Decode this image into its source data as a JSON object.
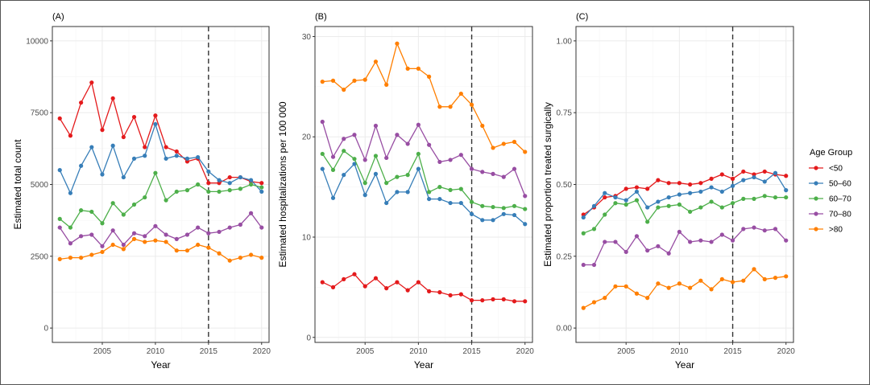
{
  "colors": {
    "<50": "#e41a1c",
    "50–60": "#377eb8",
    "60–70": "#4daf4a",
    "70–80": "#984ea3",
    ">80": "#ff7f00"
  },
  "legend": {
    "title": "Age Group",
    "items": [
      "<50",
      "50–60",
      "60–70",
      "70–80",
      ">80"
    ]
  },
  "chart_data": [
    {
      "type": "line",
      "panel_label": "(A)",
      "xlabel": "Year",
      "ylabel": "Estimated total count",
      "xlim": [
        2000.3,
        2020.7
      ],
      "ylim": [
        -500,
        10500
      ],
      "xticks": [
        2005,
        2010,
        2015,
        2020
      ],
      "yticks": [
        0,
        2500,
        5000,
        7500,
        10000
      ],
      "ytick_labels": [
        "0",
        "2500",
        "5000",
        "7500",
        "10000"
      ],
      "vline_x": 2015,
      "x": [
        2001,
        2002,
        2003,
        2004,
        2005,
        2006,
        2007,
        2008,
        2009,
        2010,
        2011,
        2012,
        2013,
        2014,
        2015,
        2016,
        2017,
        2018,
        2019,
        2020
      ],
      "series": [
        {
          "name": "<50",
          "values": [
            7300,
            6700,
            7850,
            8550,
            6900,
            8000,
            6650,
            7350,
            6300,
            7400,
            6300,
            6150,
            5800,
            5900,
            5050,
            5050,
            5250,
            5250,
            5100,
            5050
          ]
        },
        {
          "name": "50–60",
          "values": [
            5500,
            4700,
            5650,
            6300,
            5350,
            6350,
            5250,
            5900,
            6000,
            7100,
            5900,
            6000,
            5900,
            5950,
            5450,
            5150,
            5050,
            5250,
            5150,
            4750
          ]
        },
        {
          "name": "60–70",
          "values": [
            3800,
            3500,
            4100,
            4050,
            3650,
            4350,
            3950,
            4300,
            4550,
            5400,
            4450,
            4750,
            4800,
            5000,
            4750,
            4750,
            4800,
            4850,
            5000,
            4900
          ]
        },
        {
          "name": "70–80",
          "values": [
            3500,
            2950,
            3200,
            3250,
            2850,
            3400,
            2900,
            3300,
            3200,
            3550,
            3250,
            3100,
            3250,
            3500,
            3300,
            3350,
            3500,
            3600,
            4000,
            3500
          ]
        },
        {
          "name": ">80",
          "values": [
            2400,
            2450,
            2450,
            2550,
            2650,
            2900,
            2750,
            3100,
            3000,
            3050,
            3000,
            2700,
            2700,
            2900,
            2800,
            2600,
            2350,
            2450,
            2550,
            2450
          ]
        }
      ]
    },
    {
      "type": "line",
      "panel_label": "(B)",
      "xlabel": "Year",
      "ylabel": "Estimated hospitalizations per 100 000",
      "xlim": [
        2000.3,
        2020.7
      ],
      "ylim": [
        -0.5,
        31
      ],
      "xticks": [
        2005,
        2010,
        2015,
        2020
      ],
      "yticks": [
        0,
        10,
        20,
        30
      ],
      "ytick_labels": [
        "0",
        "10",
        "20",
        "30"
      ],
      "vline_x": 2015,
      "x": [
        2001,
        2002,
        2003,
        2004,
        2005,
        2006,
        2007,
        2008,
        2009,
        2010,
        2011,
        2012,
        2013,
        2014,
        2015,
        2016,
        2017,
        2018,
        2019,
        2020
      ],
      "series": [
        {
          "name": "<50",
          "values": [
            5.5,
            5.0,
            5.8,
            6.3,
            5.1,
            5.9,
            4.9,
            5.5,
            4.7,
            5.5,
            4.6,
            4.5,
            4.2,
            4.3,
            3.7,
            3.7,
            3.8,
            3.8,
            3.6,
            3.6
          ]
        },
        {
          "name": "50–60",
          "values": [
            16.8,
            13.9,
            16.2,
            17.3,
            14.2,
            16.3,
            13.4,
            14.5,
            14.5,
            16.8,
            13.8,
            13.8,
            13.4,
            13.4,
            12.3,
            11.7,
            11.7,
            12.3,
            12.2,
            11.3
          ]
        },
        {
          "name": "60–70",
          "values": [
            18.3,
            16.7,
            18.6,
            17.8,
            15.4,
            18.1,
            15.4,
            16.0,
            16.2,
            18.3,
            14.5,
            15.0,
            14.7,
            14.8,
            13.5,
            13.1,
            13.0,
            12.9,
            13.1,
            12.8
          ]
        },
        {
          "name": "70–80",
          "values": [
            21.5,
            18.0,
            19.8,
            20.2,
            17.7,
            21.1,
            17.9,
            20.2,
            19.3,
            21.2,
            19.2,
            17.5,
            17.7,
            18.2,
            16.8,
            16.5,
            16.3,
            16.0,
            16.8,
            14.1
          ]
        },
        {
          "name": ">80",
          "values": [
            25.5,
            25.6,
            24.7,
            25.6,
            25.7,
            27.5,
            25.2,
            29.3,
            26.8,
            26.8,
            26.0,
            23.0,
            23.0,
            24.3,
            23.2,
            21.1,
            18.9,
            19.3,
            19.5,
            18.5
          ]
        }
      ]
    },
    {
      "type": "line",
      "panel_label": "(C)",
      "xlabel": "Year",
      "ylabel": "Estimated proportion treated surgically",
      "xlim": [
        2000.3,
        2020.7
      ],
      "ylim": [
        -0.05,
        1.05
      ],
      "xticks": [
        2005,
        2010,
        2015,
        2020
      ],
      "yticks": [
        0,
        0.25,
        0.5,
        0.75,
        1.0
      ],
      "ytick_labels": [
        "0.00",
        "0.25",
        "0.50",
        "0.75",
        "1.00"
      ],
      "vline_x": 2015,
      "x": [
        2001,
        2002,
        2003,
        2004,
        2005,
        2006,
        2007,
        2008,
        2009,
        2010,
        2011,
        2012,
        2013,
        2014,
        2015,
        2016,
        2017,
        2018,
        2019,
        2020
      ],
      "series": [
        {
          "name": "<50",
          "values": [
            0.395,
            0.42,
            0.455,
            0.46,
            0.485,
            0.49,
            0.485,
            0.515,
            0.505,
            0.505,
            0.5,
            0.505,
            0.52,
            0.535,
            0.52,
            0.545,
            0.535,
            0.545,
            0.535,
            0.53
          ]
        },
        {
          "name": "50–60",
          "values": [
            0.385,
            0.425,
            0.47,
            0.455,
            0.445,
            0.475,
            0.42,
            0.44,
            0.455,
            0.465,
            0.47,
            0.475,
            0.49,
            0.475,
            0.495,
            0.515,
            0.525,
            0.51,
            0.54,
            0.48
          ]
        },
        {
          "name": "60–70",
          "values": [
            0.33,
            0.345,
            0.395,
            0.435,
            0.43,
            0.445,
            0.37,
            0.42,
            0.425,
            0.43,
            0.405,
            0.42,
            0.44,
            0.42,
            0.435,
            0.45,
            0.45,
            0.46,
            0.455,
            0.455
          ]
        },
        {
          "name": "70–80",
          "values": [
            0.22,
            0.22,
            0.3,
            0.3,
            0.265,
            0.32,
            0.27,
            0.285,
            0.26,
            0.335,
            0.3,
            0.305,
            0.3,
            0.325,
            0.305,
            0.345,
            0.35,
            0.34,
            0.345,
            0.305
          ]
        },
        {
          "name": ">80",
          "values": [
            0.07,
            0.09,
            0.105,
            0.145,
            0.145,
            0.12,
            0.105,
            0.155,
            0.14,
            0.155,
            0.14,
            0.165,
            0.135,
            0.17,
            0.16,
            0.165,
            0.205,
            0.17,
            0.175,
            0.18
          ]
        }
      ]
    }
  ]
}
